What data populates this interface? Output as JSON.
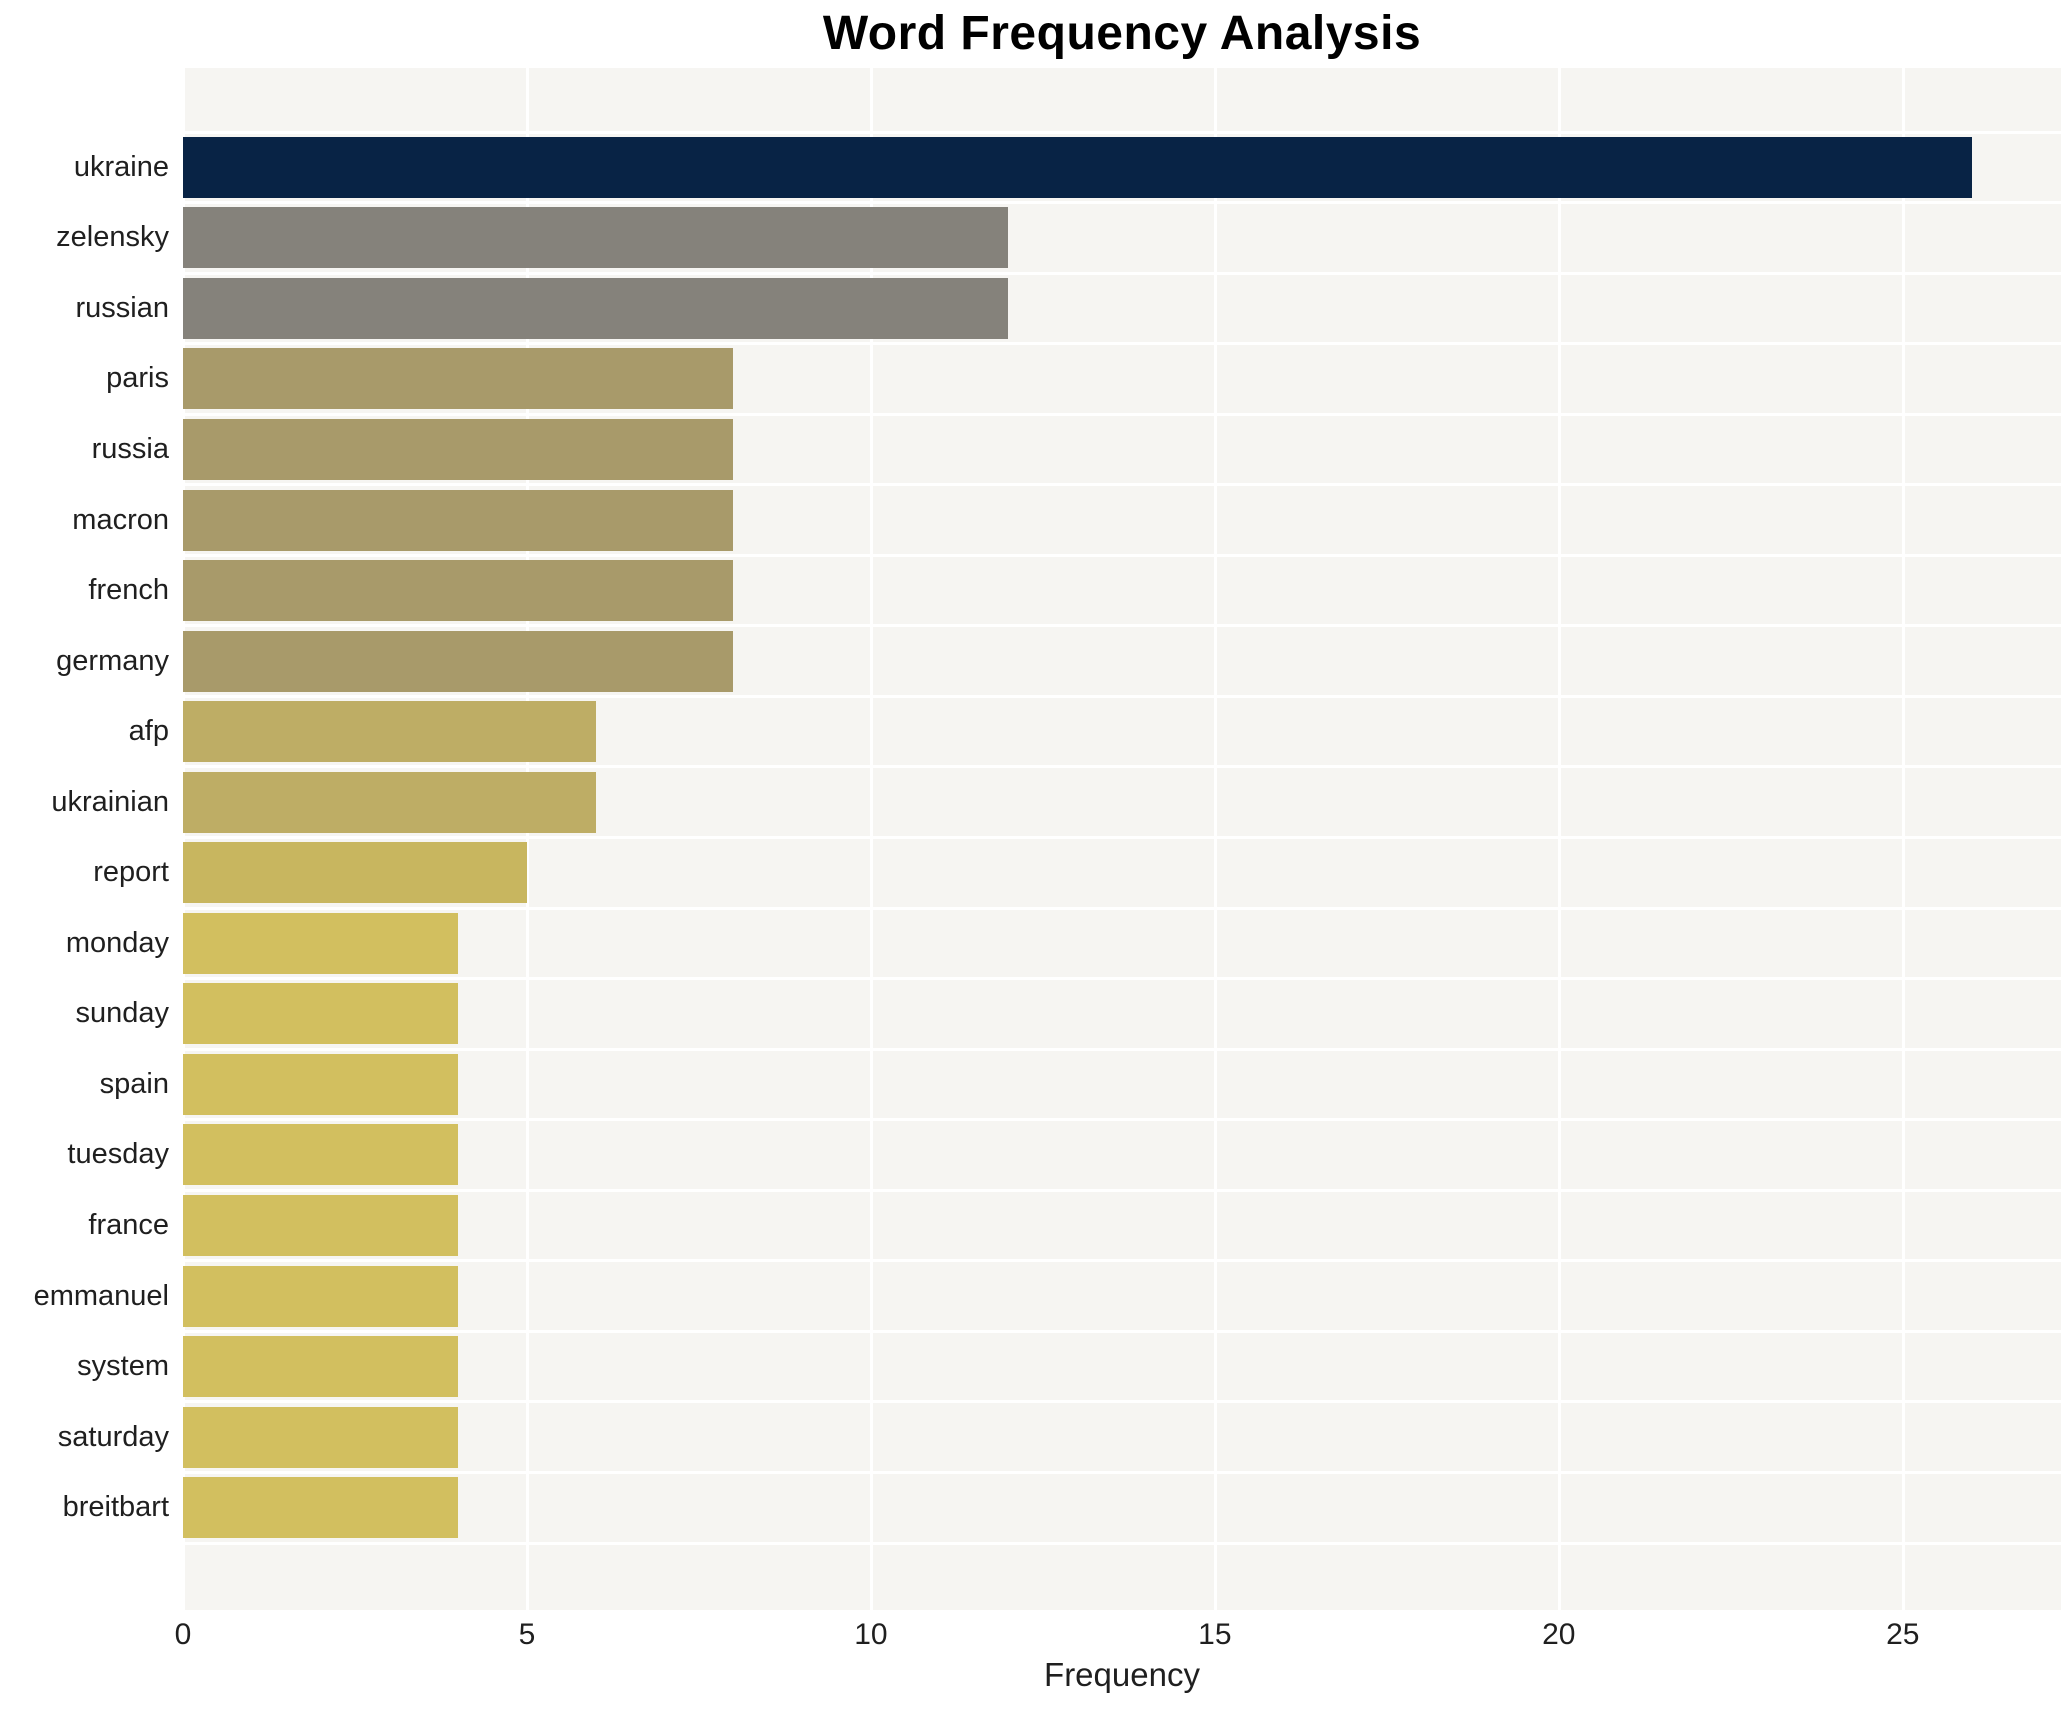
{
  "title": "Word Frequency Analysis",
  "chart_data": {
    "type": "bar",
    "orientation": "horizontal",
    "title": "Word Frequency Analysis",
    "xlabel": "Frequency",
    "ylabel": "",
    "categories": [
      "ukraine",
      "zelensky",
      "russian",
      "paris",
      "russia",
      "macron",
      "french",
      "germany",
      "afp",
      "ukrainian",
      "report",
      "monday",
      "sunday",
      "spain",
      "tuesday",
      "france",
      "emmanuel",
      "system",
      "saturday",
      "breitbart"
    ],
    "values": [
      26,
      12,
      12,
      8,
      8,
      8,
      8,
      8,
      6,
      6,
      5,
      4,
      4,
      4,
      4,
      4,
      4,
      4,
      4,
      4
    ],
    "bar_colors": [
      "#082345",
      "#85827b",
      "#85827b",
      "#a89a6a",
      "#a89a6a",
      "#a89a6a",
      "#a89a6a",
      "#a89a6a",
      "#bead65",
      "#bead65",
      "#c8b65f",
      "#d2bf5f",
      "#d2bf5f",
      "#d2bf5f",
      "#d2bf5f",
      "#d2bf5f",
      "#d2bf5f",
      "#d2bf5f",
      "#d2bf5f",
      "#d2bf5f"
    ],
    "xlim": [
      0,
      27.3
    ],
    "xticks": [
      0,
      5,
      10,
      15,
      20,
      25
    ],
    "xtick_labels": [
      "0",
      "5",
      "10",
      "15",
      "20",
      "25"
    ],
    "grid": true,
    "legend": false,
    "plot_background": "#f6f5f2",
    "grid_color": "#ffffff",
    "text_color": "#1f1f1f"
  }
}
